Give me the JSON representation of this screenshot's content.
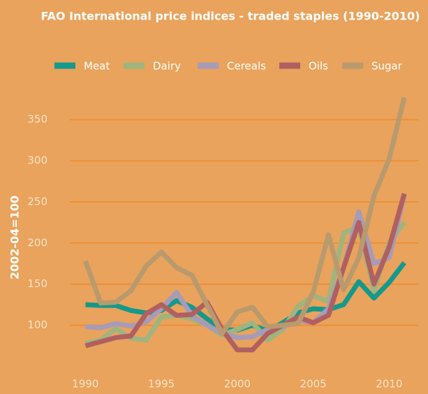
{
  "chart_data": {
    "type": "line",
    "title": "FAO International price indices - traded staples (1990-2010)",
    "y_label": "2002-04=100",
    "x": [
      1990,
      1991,
      1992,
      1993,
      1994,
      1995,
      1996,
      1997,
      1998,
      1999,
      2000,
      2001,
      2002,
      2003,
      2004,
      2005,
      2006,
      2007,
      2008,
      2009,
      2010,
      2011
    ],
    "series": [
      {
        "name": "Meat",
        "color": "#14998c",
        "values": [
          125,
          124,
          124,
          118,
          115,
          118,
          130,
          122,
          108,
          95,
          94,
          100,
          93,
          103,
          115,
          120,
          119,
          125,
          153,
          133,
          152,
          176
        ]
      },
      {
        "name": "Dairy",
        "color": "#9fb47f",
        "values": [
          78,
          82,
          96,
          84,
          82,
          110,
          112,
          108,
          100,
          88,
          95,
          103,
          82,
          95,
          123,
          136,
          129,
          212,
          220,
          142,
          200,
          225
        ]
      },
      {
        "name": "Cereals",
        "color": "#a69bb9",
        "values": [
          98,
          97,
          102,
          99,
          104,
          120,
          140,
          112,
          100,
          90,
          85,
          86,
          95,
          98,
          106,
          103,
          120,
          170,
          238,
          175,
          182,
          258
        ]
      },
      {
        "name": "Oils",
        "color": "#b06060",
        "values": [
          75,
          80,
          85,
          87,
          114,
          125,
          112,
          113,
          128,
          95,
          70,
          70,
          90,
          100,
          110,
          103,
          112,
          170,
          225,
          150,
          195,
          260
        ]
      },
      {
        "name": "Sugar",
        "color": "#b89a6e",
        "values": [
          178,
          127,
          128,
          142,
          172,
          189,
          170,
          161,
          125,
          90,
          116,
          122,
          98,
          100,
          102,
          140,
          210,
          143,
          182,
          257,
          302,
          377
        ]
      }
    ],
    "xlim": [
      1989.2,
      2011.5
    ],
    "xticks": [
      1990,
      1995,
      2000,
      2005,
      2010
    ],
    "ylim": [
      30,
      385
    ],
    "yticks": [
      100,
      150,
      200,
      250,
      300,
      350
    ],
    "grid": true
  }
}
